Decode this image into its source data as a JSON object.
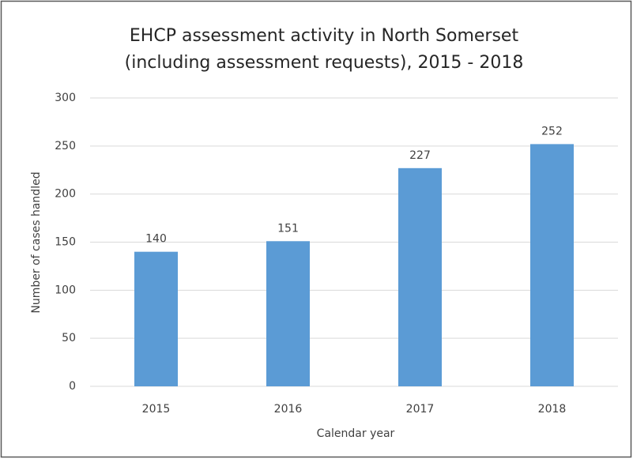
{
  "chart_data": {
    "type": "bar",
    "title": [
      "EHCP assessment activity in North Somerset",
      "(including assessment requests), 2015 - 2018"
    ],
    "x_label": "Calendar year",
    "y_label": "Number of cases handled",
    "categories": [
      "2015",
      "2016",
      "2017",
      "2018"
    ],
    "values": [
      140,
      151,
      227,
      252
    ],
    "color": "#5b9bd5",
    "ylim": [
      0,
      300
    ],
    "yticks": [
      0,
      50,
      100,
      150,
      200,
      250,
      300
    ],
    "grid": true
  }
}
